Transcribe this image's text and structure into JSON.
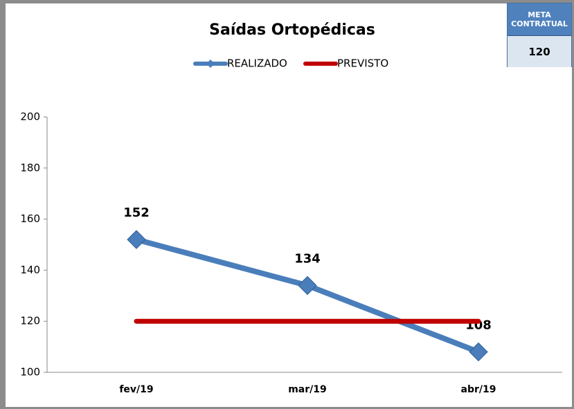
{
  "chart_data": {
    "type": "line",
    "title": "Saídas Ortopédicas",
    "categories": [
      "fev/19",
      "mar/19",
      "abr/19"
    ],
    "series": [
      {
        "name": "REALIZADO",
        "color": "#4a7ebb",
        "values": [
          152,
          134,
          108
        ],
        "show_labels": true
      },
      {
        "name": "PREVISTO",
        "color": "#c00000",
        "values": [
          120,
          120,
          120
        ],
        "show_labels": false
      }
    ],
    "ylim": [
      100,
      200
    ],
    "yticks": [
      100,
      120,
      140,
      160,
      180,
      200
    ],
    "grid": false,
    "legend": "top"
  },
  "meta": {
    "label": "META CONTRATUAL",
    "value": "120"
  }
}
